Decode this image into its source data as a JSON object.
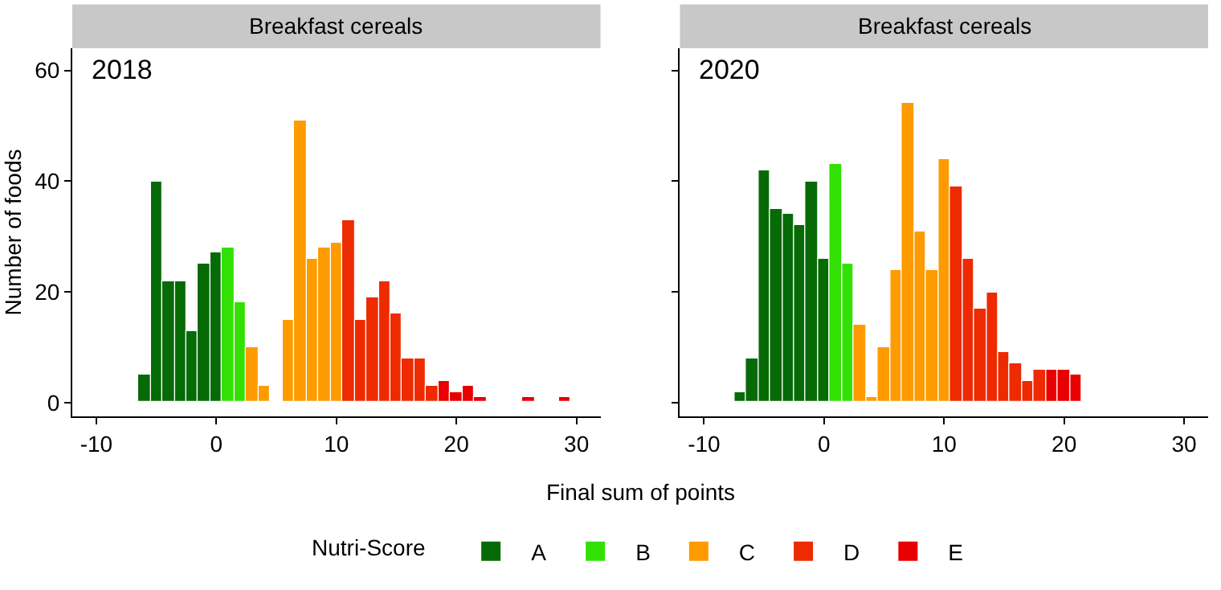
{
  "chart_data": [
    {
      "type": "histogram",
      "title": "Breakfast cereals",
      "annotations": [
        "2018"
      ],
      "xlabel": "Final sum of points",
      "ylabel": "Number of foods",
      "legend_title": "Nutri-Score",
      "legend": "bottom",
      "xlim": [
        -12,
        32
      ],
      "xticks": [
        -10,
        0,
        10,
        20,
        30
      ],
      "ylim": [
        -2.5,
        64
      ],
      "yticks": [
        0,
        20,
        40,
        60
      ],
      "grid": false,
      "bins": [
        -7.5,
        -6.5,
        -5.5,
        -4.5,
        -3.5,
        -2.5,
        -1.5,
        -0.5,
        0.5,
        1.5,
        2.5,
        3.5,
        4.5,
        5.5,
        6.5,
        7.5,
        8.5,
        9.5,
        10.5,
        11.5,
        12.5,
        13.5,
        14.5,
        15.5,
        16.5,
        17.5,
        18.5,
        19.5,
        20.5,
        21.5,
        22.5,
        23.5,
        24.5,
        25.5,
        26.5,
        27.5,
        28.5,
        29.5
      ],
      "series": [
        {
          "name": "A",
          "color": "#066a06",
          "values": [
            null,
            5,
            40,
            22,
            22,
            13,
            25,
            27,
            null,
            null,
            null,
            null,
            null,
            null,
            null,
            null,
            null,
            null,
            null,
            null,
            null,
            null,
            null,
            null,
            null,
            null,
            null,
            null,
            null,
            null,
            null,
            null,
            null,
            null,
            null,
            null,
            null
          ]
        },
        {
          "name": "B",
          "color": "#33e004",
          "values": [
            null,
            null,
            null,
            null,
            null,
            null,
            null,
            null,
            28,
            18,
            null,
            null,
            null,
            null,
            null,
            null,
            null,
            null,
            null,
            null,
            null,
            null,
            null,
            null,
            null,
            null,
            null,
            null,
            null,
            null,
            null,
            null,
            null,
            null,
            null,
            null,
            null
          ]
        },
        {
          "name": "C",
          "color": "#fd9b00",
          "values": [
            null,
            null,
            null,
            null,
            null,
            null,
            null,
            null,
            null,
            null,
            10,
            3,
            0,
            15,
            51,
            26,
            28,
            29,
            null,
            null,
            null,
            null,
            null,
            null,
            null,
            null,
            null,
            null,
            null,
            null,
            null,
            null,
            null,
            null,
            null,
            null,
            null
          ]
        },
        {
          "name": "D",
          "color": "#ee2a00",
          "values": [
            null,
            null,
            null,
            null,
            null,
            null,
            null,
            null,
            null,
            null,
            null,
            null,
            null,
            null,
            null,
            null,
            null,
            null,
            33,
            15,
            19,
            22,
            16,
            8,
            8,
            3,
            null,
            null,
            null,
            null,
            null,
            null,
            null,
            null,
            null,
            null,
            null
          ]
        },
        {
          "name": "E",
          "color": "#e80000",
          "values": [
            null,
            null,
            null,
            null,
            null,
            null,
            null,
            null,
            null,
            null,
            null,
            null,
            null,
            null,
            null,
            null,
            null,
            null,
            null,
            null,
            null,
            null,
            null,
            null,
            null,
            null,
            4,
            2,
            3,
            1,
            0,
            0,
            0,
            1,
            0,
            0,
            1
          ]
        }
      ]
    },
    {
      "type": "histogram",
      "title": "Breakfast cereals",
      "annotations": [
        "2020"
      ],
      "tick_labels": "x",
      "xlim": [
        -12,
        32
      ],
      "xticks": [
        -10,
        0,
        10,
        20,
        30
      ],
      "ylim": [
        -2.5,
        64
      ],
      "yticks": [
        0,
        20,
        40,
        60
      ],
      "grid": false,
      "bins": [
        -7.5,
        -6.5,
        -5.5,
        -4.5,
        -3.5,
        -2.5,
        -1.5,
        -0.5,
        0.5,
        1.5,
        2.5,
        3.5,
        4.5,
        5.5,
        6.5,
        7.5,
        8.5,
        9.5,
        10.5,
        11.5,
        12.5,
        13.5,
        14.5,
        15.5,
        16.5,
        17.5,
        18.5,
        19.5,
        20.5,
        21.5,
        22.5,
        23.5,
        24.5,
        25.5,
        26.5,
        27.5,
        28.5,
        29.5
      ],
      "series": [
        {
          "color": "#066a06",
          "values": [
            2,
            8,
            42,
            35,
            34,
            32,
            40,
            26,
            null,
            null,
            null,
            null,
            null,
            null,
            null,
            null,
            null,
            null,
            null,
            null,
            null,
            null,
            null,
            null,
            null,
            null,
            null,
            null,
            null,
            null,
            null,
            null,
            null,
            null,
            null,
            null,
            null
          ]
        },
        {
          "color": "#33e004",
          "values": [
            null,
            null,
            null,
            null,
            null,
            null,
            null,
            null,
            43,
            25,
            null,
            null,
            null,
            null,
            null,
            null,
            null,
            null,
            null,
            null,
            null,
            null,
            null,
            null,
            null,
            null,
            null,
            null,
            null,
            null,
            null,
            null,
            null,
            null,
            null,
            null,
            null
          ]
        },
        {
          "color": "#fd9b00",
          "values": [
            null,
            null,
            null,
            null,
            null,
            null,
            null,
            null,
            null,
            null,
            14,
            1,
            10,
            24,
            54,
            31,
            24,
            44,
            null,
            null,
            null,
            null,
            null,
            null,
            null,
            null,
            null,
            null,
            null,
            null,
            null,
            null,
            null,
            null,
            null,
            null,
            null
          ]
        },
        {
          "color": "#ee2a00",
          "values": [
            null,
            null,
            null,
            null,
            null,
            null,
            null,
            null,
            null,
            null,
            null,
            null,
            null,
            null,
            null,
            null,
            null,
            null,
            39,
            26,
            17,
            20,
            9,
            7,
            4,
            6,
            null,
            null,
            null,
            null,
            null,
            null,
            null,
            null,
            null,
            null,
            null
          ]
        },
        {
          "color": "#e80000",
          "values": [
            null,
            null,
            null,
            null,
            null,
            null,
            null,
            null,
            null,
            null,
            null,
            null,
            null,
            null,
            null,
            null,
            null,
            null,
            null,
            null,
            null,
            null,
            null,
            null,
            null,
            null,
            6,
            6,
            5,
            null,
            null,
            null,
            null,
            null,
            null,
            null,
            null
          ]
        }
      ]
    }
  ]
}
